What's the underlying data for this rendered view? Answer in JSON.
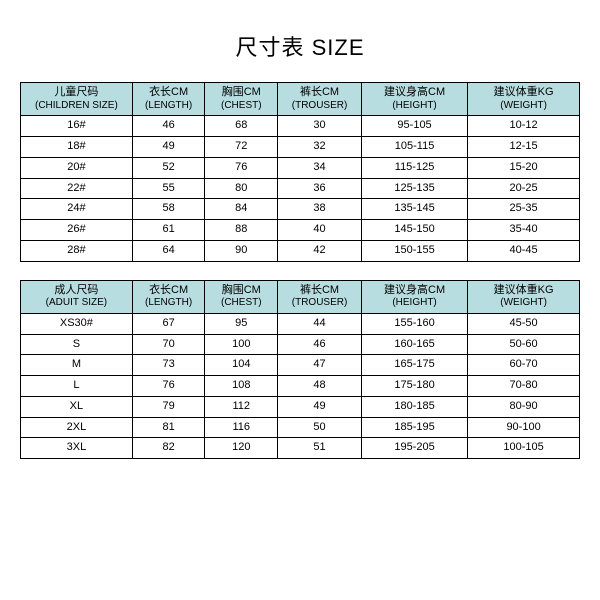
{
  "title": "尺寸表 SIZE",
  "header_bg": "#b8dde0",
  "tables": [
    {
      "columns": [
        {
          "cn": "儿童尺码",
          "en": "(CHILDREN SIZE)"
        },
        {
          "cn": "衣长CM",
          "en": "(LENGTH)"
        },
        {
          "cn": "胸围CM",
          "en": "(CHEST)"
        },
        {
          "cn": "裤长CM",
          "en": "(TROUSER)"
        },
        {
          "cn": "建议身高CM",
          "en": "(HEIGHT)"
        },
        {
          "cn": "建议体重KG",
          "en": "(WEIGHT)"
        }
      ],
      "rows": [
        [
          "16#",
          "46",
          "68",
          "30",
          "95-105",
          "10-12"
        ],
        [
          "18#",
          "49",
          "72",
          "32",
          "105-115",
          "12-15"
        ],
        [
          "20#",
          "52",
          "76",
          "34",
          "115-125",
          "15-20"
        ],
        [
          "22#",
          "55",
          "80",
          "36",
          "125-135",
          "20-25"
        ],
        [
          "24#",
          "58",
          "84",
          "38",
          "135-145",
          "25-35"
        ],
        [
          "26#",
          "61",
          "88",
          "40",
          "145-150",
          "35-40"
        ],
        [
          "28#",
          "64",
          "90",
          "42",
          "150-155",
          "40-45"
        ]
      ]
    },
    {
      "columns": [
        {
          "cn": "成人尺码",
          "en": "(ADUIT SIZE)"
        },
        {
          "cn": "衣长CM",
          "en": "(LENGTH)"
        },
        {
          "cn": "胸围CM",
          "en": "(CHEST)"
        },
        {
          "cn": "裤长CM",
          "en": "(TROUSER)"
        },
        {
          "cn": "建议身高CM",
          "en": "(HEIGHT)"
        },
        {
          "cn": "建议体重KG",
          "en": "(WEIGHT)"
        }
      ],
      "rows": [
        [
          "XS30#",
          "67",
          "95",
          "44",
          "155-160",
          "45-50"
        ],
        [
          "S",
          "70",
          "100",
          "46",
          "160-165",
          "50-60"
        ],
        [
          "M",
          "73",
          "104",
          "47",
          "165-175",
          "60-70"
        ],
        [
          "L",
          "76",
          "108",
          "48",
          "175-180",
          "70-80"
        ],
        [
          "XL",
          "79",
          "112",
          "49",
          "180-185",
          "80-90"
        ],
        [
          "2XL",
          "81",
          "116",
          "50",
          "185-195",
          "90-100"
        ],
        [
          "3XL",
          "82",
          "120",
          "51",
          "195-205",
          "100-105"
        ]
      ]
    }
  ]
}
